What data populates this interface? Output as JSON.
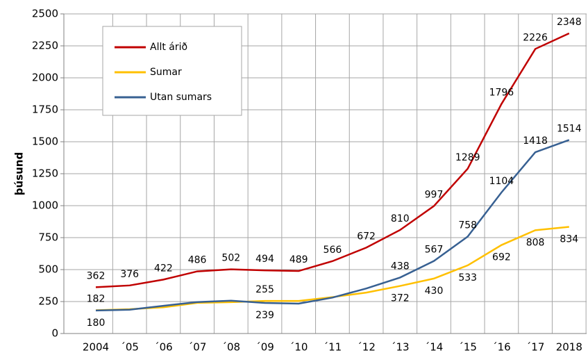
{
  "chart_data": {
    "type": "line",
    "y_label": "þúsund",
    "categories": [
      "2004",
      "´05",
      "´06",
      "´07",
      "´08",
      "´09",
      "´10",
      "´11",
      "´12",
      "´13",
      "´14",
      "´15",
      "´16",
      "´17",
      "2018"
    ],
    "series": [
      {
        "name": "Allt árið",
        "color": "#c00000",
        "values": [
          362,
          376,
          422,
          486,
          502,
          494,
          489,
          566,
          672,
          810,
          997,
          1289,
          1796,
          2226,
          2348
        ],
        "value_labels": [
          "362",
          "376",
          "422",
          "486",
          "502",
          "494",
          "489",
          "566",
          "672",
          "810",
          "997",
          "1289",
          "1796",
          "2226",
          "2348"
        ]
      },
      {
        "name": "Sumar",
        "color": "#ffc000",
        "values": [
          182,
          190,
          205,
          240,
          245,
          255,
          255,
          285,
          320,
          372,
          430,
          533,
          692,
          808,
          834
        ],
        "value_labels": [
          "182",
          null,
          null,
          null,
          null,
          "255",
          null,
          null,
          null,
          "372",
          "430",
          "533",
          "692",
          "808",
          "834"
        ]
      },
      {
        "name": "Utan sumars",
        "color": "#376092",
        "values": [
          180,
          186,
          217,
          246,
          257,
          239,
          234,
          281,
          352,
          438,
          567,
          758,
          1104,
          1418,
          1514
        ],
        "value_labels": [
          "180",
          null,
          null,
          null,
          null,
          "239",
          null,
          null,
          null,
          "438",
          "567",
          "758",
          "1104",
          "1418",
          "1514"
        ]
      }
    ],
    "ylim": [
      0,
      2500
    ],
    "yticks": [
      0,
      250,
      500,
      750,
      1000,
      1250,
      1500,
      1750,
      2000,
      2250,
      2500
    ],
    "grid": true,
    "legend": "upper left"
  }
}
